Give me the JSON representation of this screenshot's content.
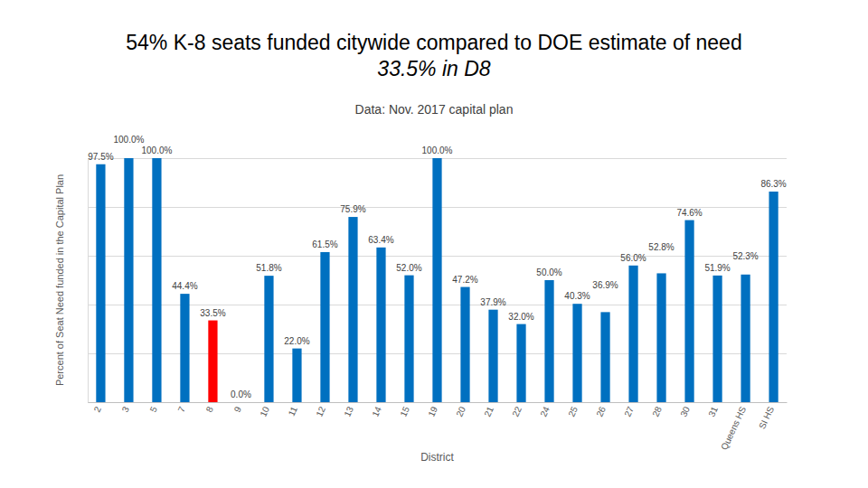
{
  "chart_data": {
    "type": "bar",
    "title": "54% K-8 seats funded citywide compared to DOE estimate of need",
    "subtitle": "33.5% in D8",
    "annotations": [
      "Data: Nov. 2017 capital plan"
    ],
    "x_label": "District",
    "y_label": "Percent of Seat Need funded in the Capital Plan",
    "categories": [
      "2",
      "3",
      "5",
      "7",
      "8",
      "9",
      "10",
      "11",
      "12",
      "13",
      "14",
      "15",
      "19",
      "20",
      "21",
      "22",
      "24",
      "25",
      "26",
      "27",
      "28",
      "30",
      "31",
      "Queens HS",
      "SI HS"
    ],
    "values": [
      97.5,
      100.0,
      100.0,
      44.4,
      33.5,
      0.0,
      51.8,
      22.0,
      61.5,
      75.9,
      63.4,
      52.0,
      100.0,
      47.2,
      37.9,
      32.0,
      50.0,
      40.3,
      36.9,
      56.0,
      52.8,
      74.6,
      51.9,
      52.3,
      86.3
    ],
    "value_labels": [
      "97.5%",
      "100.0%",
      "100.0%",
      "44.4%",
      "33.5%",
      "0.0%",
      "51.8%",
      "22.0%",
      "61.5%",
      "75.9%",
      "63.4%",
      "52.0%",
      "100.0%",
      "47.2%",
      "37.9%",
      "32.0%",
      "50.0%",
      "40.3%",
      "36.9%",
      "56.0%",
      "52.8%",
      "74.6%",
      "51.9%",
      "52.3%",
      "86.3%"
    ],
    "colors": [
      "#0070C0",
      "#0070C0",
      "#0070C0",
      "#0070C0",
      "#FF0000",
      "#0070C0",
      "#0070C0",
      "#0070C0",
      "#0070C0",
      "#0070C0",
      "#0070C0",
      "#0070C0",
      "#0070C0",
      "#0070C0",
      "#0070C0",
      "#0070C0",
      "#0070C0",
      "#0070C0",
      "#0070C0",
      "#0070C0",
      "#0070C0",
      "#0070C0",
      "#0070C0",
      "#0070C0",
      "#0070C0"
    ],
    "ylim": [
      0,
      100
    ],
    "yticks": [
      0,
      20,
      40,
      60,
      80,
      100
    ],
    "grid": true,
    "data_labels": true,
    "tick_labels": "x"
  }
}
